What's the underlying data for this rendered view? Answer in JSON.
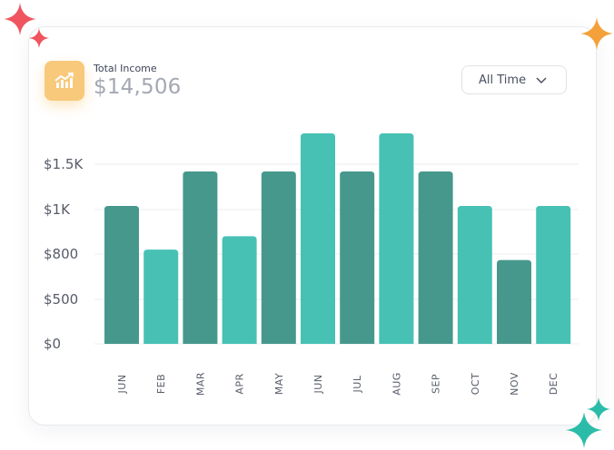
{
  "header": {
    "label": "Total Income",
    "value": "$14,506",
    "period": "All Time",
    "icon": "trending-up-icon"
  },
  "colors": {
    "bar_dark": "#46988d",
    "bar_light": "#47c1b4",
    "icon_bg": "#f8c97a",
    "sparkle_red": "#f0545f",
    "sparkle_orange": "#f4a13b",
    "sparkle_teal": "#2bbca9"
  },
  "chart_data": {
    "type": "bar",
    "categories": [
      "JUN",
      "FEB",
      "MAR",
      "APR",
      "MAY",
      "JUN",
      "JUL",
      "AUG",
      "SEP",
      "OCT",
      "NOV",
      "DEC"
    ],
    "values": [
      1040,
      820,
      1420,
      880,
      1420,
      1840,
      1420,
      1840,
      1420,
      1040,
      760,
      1040
    ],
    "shades": [
      "dark",
      "light",
      "dark",
      "light",
      "dark",
      "light",
      "dark",
      "light",
      "dark",
      "light",
      "dark",
      "light"
    ],
    "yticks": [
      {
        "value": 0,
        "label": "$0"
      },
      {
        "value": 500,
        "label": "$500"
      },
      {
        "value": 800,
        "label": "$800"
      },
      {
        "value": 1000,
        "label": "$1K"
      },
      {
        "value": 1500,
        "label": "$1.5K"
      }
    ],
    "grid": true,
    "legend": "none"
  }
}
